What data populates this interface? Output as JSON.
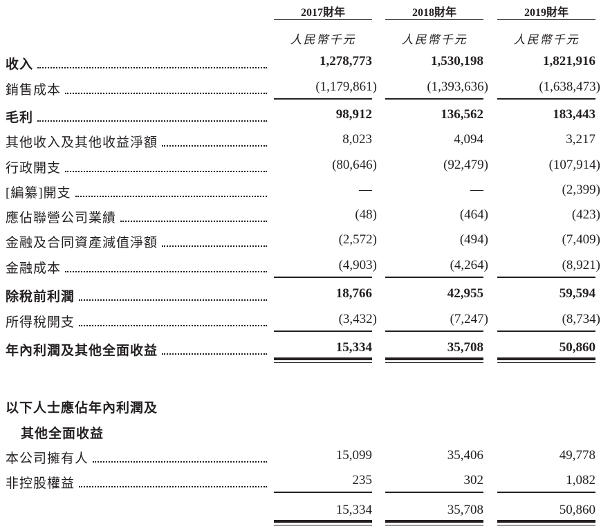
{
  "columns": [
    {
      "year": "2017財年",
      "unit": "人民幣千元"
    },
    {
      "year": "2018財年",
      "unit": "人民幣千元"
    },
    {
      "year": "2019財年",
      "unit": "人民幣千元"
    }
  ],
  "rows": [
    {
      "label": "收入",
      "bold": true,
      "values": [
        "1,278,773",
        "1,530,198",
        "1,821,916"
      ]
    },
    {
      "label": "銷售成本",
      "values": [
        "(1,179,861)",
        "(1,393,636)",
        "(1,638,473)"
      ],
      "rule_after": "single"
    },
    {
      "label": "毛利",
      "bold": true,
      "values": [
        "98,912",
        "136,562",
        "183,443"
      ]
    },
    {
      "label": "其他收入及其他收益淨額",
      "values": [
        "8,023",
        "4,094",
        "3,217"
      ]
    },
    {
      "label": "行政開支",
      "values": [
        "(80,646)",
        "(92,479)",
        "(107,914)"
      ]
    },
    {
      "label": "[編纂]開支",
      "values": [
        "—",
        "—",
        "(2,399)"
      ]
    },
    {
      "label": "應佔聯營公司業績",
      "values": [
        "(48)",
        "(464)",
        "(423)"
      ]
    },
    {
      "label": "金融及合同資產減值淨額",
      "values": [
        "(2,572)",
        "(494)",
        "(7,409)"
      ]
    },
    {
      "label": "金融成本",
      "values": [
        "(4,903)",
        "(4,264)",
        "(8,921)"
      ],
      "rule_after": "single"
    },
    {
      "label": "除稅前利潤",
      "bold": true,
      "values": [
        "18,766",
        "42,955",
        "59,594"
      ]
    },
    {
      "label": "所得稅開支",
      "values": [
        "(3,432)",
        "(7,247)",
        "(8,734)"
      ],
      "rule_after": "single"
    },
    {
      "label": "年內利潤及其他全面收益",
      "bold": true,
      "values": [
        "15,334",
        "35,708",
        "50,860"
      ],
      "rule_after": "double"
    }
  ],
  "attribution": {
    "heading_line1": "以下人士應佔年內利潤及",
    "heading_line2": "其他全面收益",
    "rows": [
      {
        "label": "本公司擁有人",
        "values": [
          "15,099",
          "35,406",
          "49,778"
        ]
      },
      {
        "label": "非控股權益",
        "values": [
          "235",
          "302",
          "1,082"
        ],
        "rule_after": "single"
      }
    ],
    "total": {
      "values": [
        "15,334",
        "35,708",
        "50,860"
      ],
      "rule_after": "double"
    }
  }
}
